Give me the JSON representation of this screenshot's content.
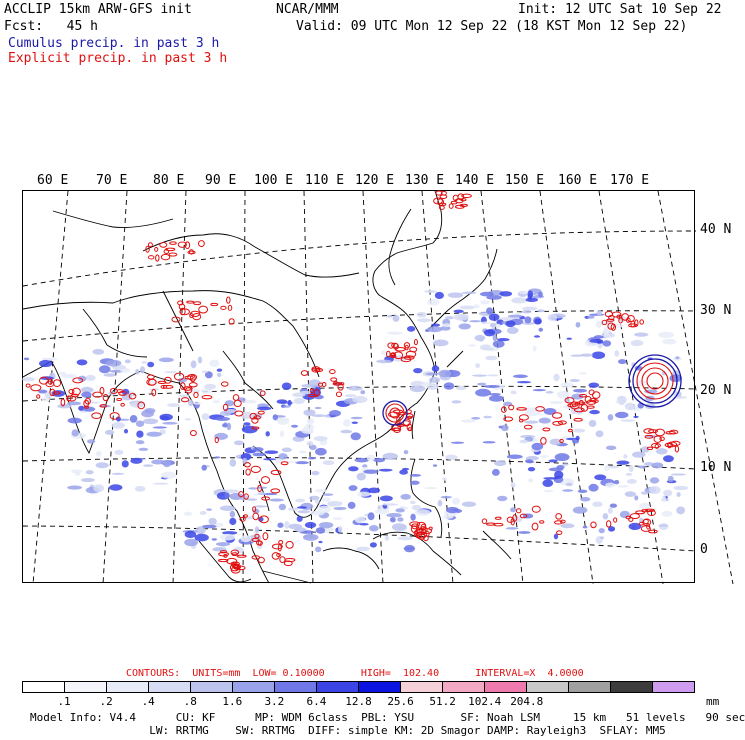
{
  "header": {
    "model_line": "ACCLIP 15km ARW-GFS init",
    "fcst_line": "Fcst:   45 h",
    "cumulus_label": "Cumulus precip. in past 3 h",
    "explicit_label": "Explicit precip. in past 3 h",
    "org": "NCAR/MMM",
    "init": "Init: 12 UTC Sat 10 Sep 22",
    "valid": "Valid: 09 UTC Mon 12 Sep 22 (18 KST Mon 12 Sep 22)"
  },
  "map": {
    "lon_labels": [
      "60 E",
      "70 E",
      "80 E",
      "90 E",
      "100 E",
      "110 E",
      "120 E",
      "130 E",
      "140 E",
      "150 E",
      "160 E",
      "170 E"
    ],
    "lat_labels": [
      "40 N",
      "30 N",
      "20 N",
      "10 N",
      "0"
    ]
  },
  "contours": {
    "prefix": "CONTOURS:",
    "units": "UNITS=mm",
    "low": "LOW= 0.10000",
    "high": "HIGH=  102.40",
    "interval": "INTERVAL=X  4.0000"
  },
  "colorbar": {
    "colors": [
      "#ffffff",
      "#f4f4fb",
      "#e8ecf8",
      "#d6dcf4",
      "#bcc4ee",
      "#9aa3ea",
      "#6f78e6",
      "#3b45e6",
      "#0b14e0",
      "#f6d0d8",
      "#f3a8c4",
      "#ee7aae",
      "#c8c8c8",
      "#a0a0a0",
      "#3c3c3c",
      "#d09cf0"
    ],
    "labels": [
      ".1",
      ".2",
      ".4",
      ".8",
      "1.6",
      "3.2",
      "6.4",
      "12.8",
      "25.6",
      "51.2",
      "102.4",
      "204.8"
    ],
    "unit": "mm"
  },
  "footer": {
    "line1": "Model Info: V4.4      CU: KF      MP: WDM 6class  PBL: YSU       SF: Noah LSM     15 km   51 levels   90 sec",
    "line2": "                  LW: RRTMG    SW: RRTMG  DIFF: simple KM: 2D Smagor DAMP: Rayleigh3  SFLAY: MM5"
  }
}
